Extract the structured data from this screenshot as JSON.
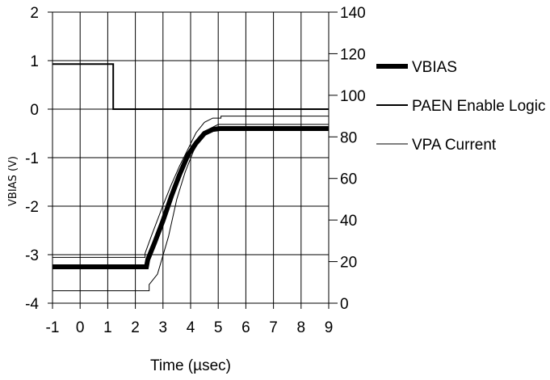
{
  "chart_data": {
    "type": "line",
    "title": "",
    "xlabel": "Time (µsec)",
    "ylabel": "VBIAS (V)",
    "y2label": "",
    "xlim": [
      -1,
      9
    ],
    "ylim": [
      -4,
      2
    ],
    "y2lim": [
      0,
      140
    ],
    "x_ticks": [
      "-1",
      "0",
      "1",
      "2",
      "3",
      "4",
      "5",
      "6",
      "7",
      "8",
      "9"
    ],
    "y_ticks": [
      "-4",
      "-3",
      "-2",
      "-1",
      "0",
      "1",
      "2"
    ],
    "y2_ticks": [
      "0",
      "20",
      "40",
      "60",
      "80",
      "100",
      "120",
      "140"
    ],
    "grid": true,
    "legend_position": "right",
    "series": [
      {
        "name": "VBIAS",
        "axis": "left",
        "style": "thick",
        "x": [
          -1,
          2.4,
          2.45,
          2.7,
          3.0,
          3.3,
          3.6,
          3.9,
          4.2,
          4.5,
          4.8,
          5.05,
          5.1,
          9
        ],
        "y": [
          -3.25,
          -3.25,
          -3.1,
          -2.75,
          -2.3,
          -1.8,
          -1.35,
          -0.95,
          -0.7,
          -0.5,
          -0.42,
          -0.4,
          -0.4,
          -0.4
        ]
      },
      {
        "name": "PAEN Enable Logic",
        "axis": "left",
        "style": "medium",
        "x": [
          -1,
          1.2,
          1.2,
          9
        ],
        "y": [
          0.93,
          0.93,
          0.0,
          0.0
        ]
      },
      {
        "name": "VPA Current",
        "axis": "right",
        "style": "thin",
        "x": [
          -1,
          2.5,
          2.5,
          2.8,
          3.2,
          3.5,
          3.8,
          4.1,
          4.4,
          4.7,
          5.0,
          5.1,
          9
        ],
        "y": [
          6,
          6,
          9,
          14,
          32,
          50,
          63,
          73,
          80,
          84,
          86,
          86,
          86
        ]
      },
      {
        "name": "",
        "axis": "right",
        "style": "thin",
        "x": [
          -1,
          2.35,
          2.35,
          2.6,
          3.0,
          3.3,
          3.6,
          3.9,
          4.2,
          4.5,
          4.8,
          5.1,
          5.1,
          9
        ],
        "y": [
          22,
          22,
          24,
          33,
          47,
          57,
          66,
          74,
          82,
          87,
          89,
          89,
          90,
          90
        ]
      }
    ],
    "legend": [
      {
        "label": "VBIAS",
        "style": "thick"
      },
      {
        "label": "PAEN Enable Logic",
        "style": "medium"
      },
      {
        "label": "VPA Current",
        "style": "thin"
      }
    ]
  }
}
